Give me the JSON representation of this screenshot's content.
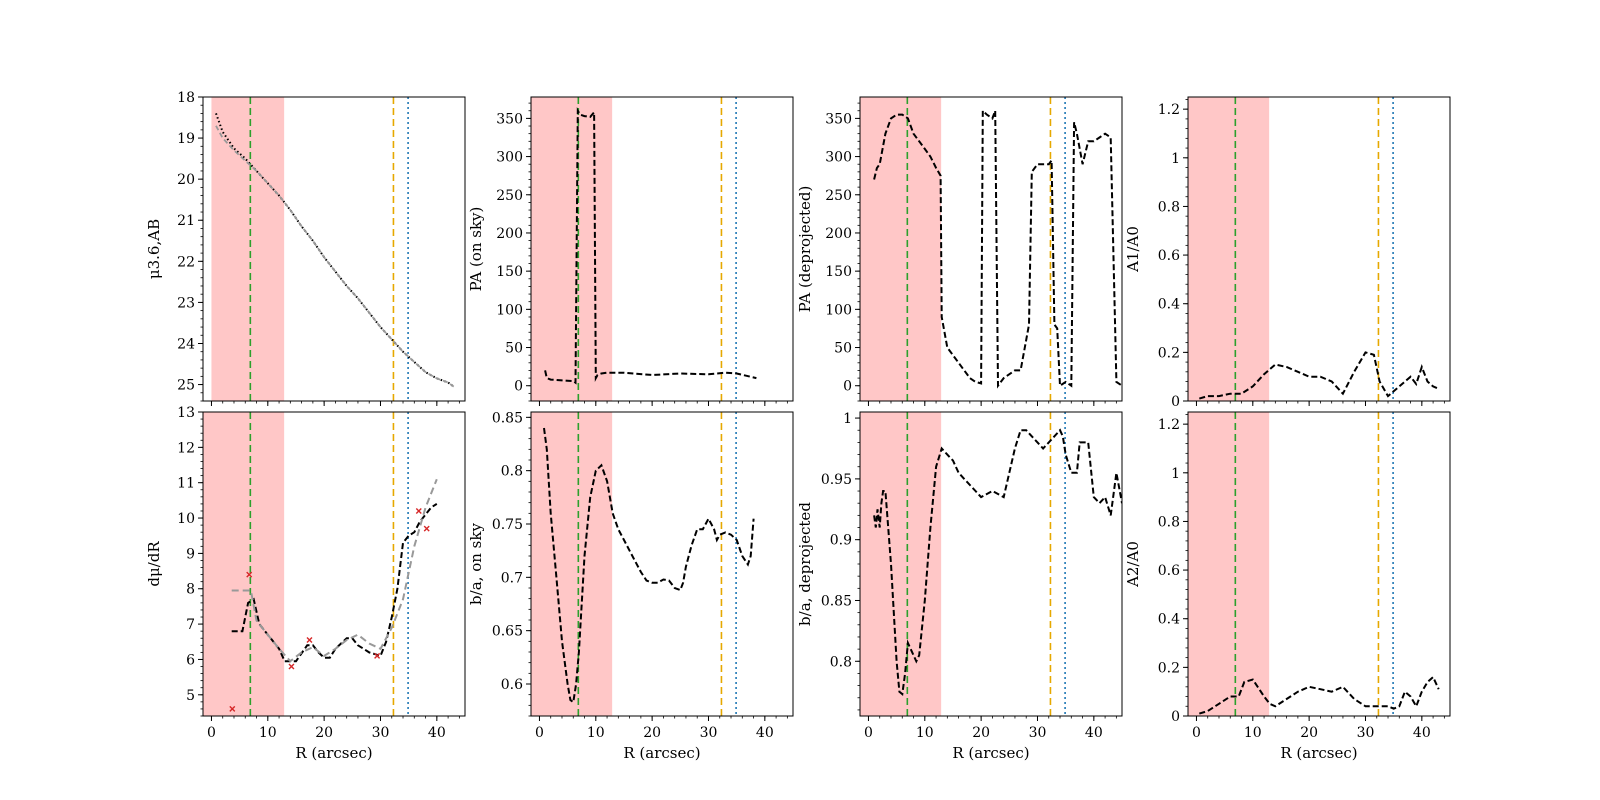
{
  "figure": {
    "title": ""
  },
  "colors": {
    "shade": "#ff9999",
    "green": "#2ca02c",
    "orange": "#e6a800",
    "blue": "#1f77b4",
    "profile": "#000000",
    "model": "#999999",
    "crosses": "#d62728"
  },
  "chart_data": [
    {
      "type": "line",
      "panel": "top-1",
      "xlabel": "",
      "ylabel": "μ3.6,AB",
      "xlim": [
        -1.5,
        45
      ],
      "ylim": [
        25.4,
        18
      ],
      "xticks": [],
      "yticks": [
        18,
        19,
        20,
        21,
        22,
        23,
        24,
        25
      ],
      "shade": [
        0,
        12.9
      ],
      "vlines": [
        6.9,
        32.3,
        34.9
      ],
      "series": [
        {
          "name": "profile",
          "style": "dotted-points",
          "x": [
            0.8,
            2,
            4,
            6,
            8,
            10,
            12,
            14,
            16,
            18,
            20,
            22,
            24,
            26,
            28,
            30,
            32,
            34,
            36,
            38,
            40,
            42,
            43
          ],
          "y": [
            18.4,
            18.85,
            19.25,
            19.5,
            19.8,
            20.1,
            20.4,
            20.75,
            21.15,
            21.5,
            21.9,
            22.25,
            22.6,
            22.9,
            23.25,
            23.6,
            23.9,
            24.2,
            24.45,
            24.7,
            24.85,
            24.95,
            25.05
          ]
        },
        {
          "name": "model",
          "style": "dashed",
          "x": [
            0.8,
            2,
            4,
            6,
            8,
            10,
            12,
            14,
            16,
            18,
            20,
            22,
            24,
            26,
            28,
            30,
            32,
            34,
            36,
            38,
            40,
            42,
            43
          ],
          "y": [
            18.7,
            19.0,
            19.3,
            19.55,
            19.8,
            20.1,
            20.4,
            20.75,
            21.15,
            21.5,
            21.9,
            22.25,
            22.6,
            22.9,
            23.25,
            23.6,
            23.9,
            24.2,
            24.45,
            24.7,
            24.85,
            24.95,
            25.05
          ]
        }
      ]
    },
    {
      "type": "line",
      "panel": "top-2",
      "xlabel": "",
      "ylabel": "PA (on sky)",
      "xlim": [
        -1.5,
        45
      ],
      "ylim": [
        -20,
        378
      ],
      "xticks": [],
      "yticks": [
        0,
        50,
        100,
        150,
        200,
        250,
        300,
        350
      ],
      "shade": [
        -1.5,
        12.9
      ],
      "vlines": [
        6.9,
        32.3,
        34.9
      ],
      "series": [
        {
          "name": "PA on sky",
          "style": "dashed",
          "x": [
            1,
            1.3,
            2,
            4,
            6,
            6.4,
            6.8,
            7.2,
            8,
            9,
            9.7,
            10,
            10.3,
            11,
            12,
            15,
            20,
            25,
            30,
            33,
            35,
            38.5
          ],
          "y": [
            20,
            10,
            8,
            7,
            6,
            4,
            360,
            355,
            353,
            352,
            358,
            10,
            14,
            16,
            17,
            17,
            14,
            16,
            15,
            17,
            16,
            10
          ]
        }
      ]
    },
    {
      "type": "line",
      "panel": "top-3",
      "xlabel": "",
      "ylabel": "PA (deprojected)",
      "xlim": [
        -1.5,
        45
      ],
      "ylim": [
        -20,
        378
      ],
      "xticks": [],
      "yticks": [
        0,
        50,
        100,
        150,
        200,
        250,
        300,
        350
      ],
      "shade": [
        -1.5,
        12.9
      ],
      "vlines": [
        6.9,
        32.3,
        34.9
      ],
      "series": [
        {
          "name": "PA deprojected",
          "style": "dashed",
          "x": [
            1,
            1.5,
            2,
            3,
            4,
            5,
            6,
            7,
            8,
            9,
            10,
            11,
            12,
            12.8,
            13,
            14,
            16,
            18,
            19,
            20,
            20.3,
            21,
            22,
            22.5,
            23,
            24,
            26,
            27,
            28,
            28.5,
            29,
            30,
            31,
            32,
            32.5,
            33,
            33.5,
            34,
            35,
            36,
            36.5,
            37,
            38,
            39,
            40,
            41,
            42,
            43,
            44,
            45
          ],
          "y": [
            270,
            285,
            290,
            330,
            350,
            355,
            355,
            350,
            330,
            320,
            310,
            300,
            285,
            275,
            90,
            50,
            30,
            10,
            5,
            3,
            360,
            355,
            350,
            360,
            0,
            10,
            20,
            20,
            60,
            80,
            280,
            290,
            290,
            290,
            295,
            80,
            75,
            0,
            5,
            0,
            345,
            330,
            290,
            320,
            320,
            325,
            330,
            325,
            5,
            0
          ]
        }
      ]
    },
    {
      "type": "line",
      "panel": "top-4",
      "xlabel": "",
      "ylabel": "A1/A0",
      "xlim": [
        -1.5,
        45
      ],
      "ylim": [
        0,
        1.25
      ],
      "xticks": [],
      "yticks": [
        0.0,
        0.2,
        0.4,
        0.6,
        0.8,
        1.0,
        1.2
      ],
      "shade": [
        -1.5,
        12.9
      ],
      "vlines": [
        6.9,
        32.3,
        34.9
      ],
      "series": [
        {
          "name": "A1/A0",
          "style": "dashed",
          "x": [
            0.5,
            2,
            4,
            6,
            8,
            10,
            12,
            14,
            16,
            18,
            20,
            22,
            24,
            26,
            28,
            30,
            31.5,
            32.5,
            34,
            36,
            38,
            39,
            40,
            41,
            42,
            43
          ],
          "y": [
            0.01,
            0.02,
            0.02,
            0.03,
            0.03,
            0.06,
            0.11,
            0.15,
            0.14,
            0.12,
            0.1,
            0.1,
            0.08,
            0.03,
            0.12,
            0.2,
            0.19,
            0.08,
            0.02,
            0.06,
            0.1,
            0.07,
            0.14,
            0.08,
            0.06,
            0.05
          ]
        }
      ]
    },
    {
      "type": "line",
      "panel": "bottom-1",
      "xlabel": "R (arcsec)",
      "ylabel": "dμ/dR",
      "xlim": [
        -1.5,
        45
      ],
      "ylim": [
        4.4,
        13
      ],
      "xticks": [
        0,
        10,
        20,
        30,
        40
      ],
      "yticks": [
        5,
        6,
        7,
        8,
        9,
        10,
        11,
        12,
        13
      ],
      "shade": [
        -1.5,
        12.9
      ],
      "vlines": [
        6.9,
        32.3,
        34.9
      ],
      "series": [
        {
          "name": "gradient",
          "style": "dashed",
          "x": [
            3.6,
            5.5,
            6.5,
            7.5,
            8.5,
            10,
            12,
            13,
            15,
            17,
            18,
            19,
            20,
            21,
            22,
            24,
            25,
            26,
            27,
            28,
            29,
            30,
            31,
            32,
            33,
            34,
            35,
            36,
            37,
            38,
            39,
            40
          ],
          "y": [
            6.8,
            6.8,
            7.6,
            7.7,
            7.0,
            6.7,
            6.3,
            5.95,
            5.95,
            6.4,
            6.4,
            6.2,
            6.05,
            6.05,
            6.3,
            6.6,
            6.6,
            6.4,
            6.3,
            6.2,
            6.15,
            6.1,
            6.5,
            7.2,
            8.0,
            9.3,
            9.5,
            9.6,
            9.9,
            10.1,
            10.3,
            10.4
          ]
        },
        {
          "name": "smoothed",
          "style": "dashed-gray",
          "x": [
            3.6,
            7,
            8,
            10,
            12,
            14,
            16,
            18,
            20,
            22,
            24,
            26,
            28,
            30,
            32,
            34,
            36,
            38,
            40
          ],
          "y": [
            7.95,
            7.95,
            7.1,
            6.7,
            6.3,
            5.95,
            6.2,
            6.35,
            6.1,
            6.3,
            6.55,
            6.7,
            6.45,
            6.3,
            6.9,
            7.7,
            9.2,
            10.3,
            11.1
          ]
        }
      ],
      "markers": {
        "name": "crosses",
        "x": [
          3.7,
          6.7,
          14.2,
          17.4,
          29.4,
          36.8,
          38.2
        ],
        "y": [
          4.6,
          8.4,
          5.8,
          6.55,
          6.1,
          10.2,
          9.7
        ]
      }
    },
    {
      "type": "line",
      "panel": "bottom-2",
      "xlabel": "R (arcsec)",
      "ylabel": "b/a, on sky",
      "xlim": [
        -1.5,
        45
      ],
      "ylim": [
        0.57,
        0.855
      ],
      "xticks": [
        0,
        10,
        20,
        30,
        40
      ],
      "yticks": [
        0.6,
        0.65,
        0.7,
        0.75,
        0.8,
        0.85
      ],
      "shade": [
        -1.5,
        12.9
      ],
      "vlines": [
        6.9,
        32.3,
        34.9
      ],
      "series": [
        {
          "name": "b/a on sky",
          "style": "dashed",
          "x": [
            0.8,
            1.3,
            2,
            3,
            4,
            5,
            5.5,
            6,
            6.5,
            7,
            8,
            9,
            10,
            11,
            12,
            13,
            14,
            15,
            16,
            17,
            18,
            19,
            20,
            21,
            22,
            23,
            24,
            25,
            25.5,
            26,
            27,
            28,
            29,
            30,
            31,
            31.5,
            32,
            33,
            34,
            35,
            36,
            37,
            37.5,
            38
          ],
          "y": [
            0.84,
            0.82,
            0.76,
            0.7,
            0.64,
            0.6,
            0.585,
            0.583,
            0.6,
            0.63,
            0.72,
            0.775,
            0.8,
            0.805,
            0.79,
            0.76,
            0.745,
            0.735,
            0.725,
            0.715,
            0.705,
            0.697,
            0.695,
            0.695,
            0.698,
            0.697,
            0.69,
            0.688,
            0.695,
            0.71,
            0.73,
            0.745,
            0.745,
            0.755,
            0.745,
            0.735,
            0.74,
            0.742,
            0.74,
            0.735,
            0.72,
            0.712,
            0.72,
            0.755
          ]
        }
      ]
    },
    {
      "type": "line",
      "panel": "bottom-3",
      "xlabel": "R (arcsec)",
      "ylabel": "b/a, deprojected",
      "xlim": [
        -1.5,
        45
      ],
      "ylim": [
        0.755,
        1.005
      ],
      "xticks": [
        0,
        10,
        20,
        30,
        40
      ],
      "yticks": [
        0.8,
        0.85,
        0.9,
        0.95,
        1.0
      ],
      "shade": [
        -1.5,
        12.9
      ],
      "vlines": [
        6.9,
        32.3,
        34.9
      ],
      "series": [
        {
          "name": "b/a deprojected",
          "style": "dashed",
          "x": [
            1,
            1.3,
            1.6,
            2,
            2.3,
            2.6,
            3,
            4,
            5,
            5.5,
            6,
            6.5,
            7,
            7.5,
            8,
            8.5,
            9,
            10,
            11,
            12,
            13,
            14,
            15,
            16,
            17,
            18,
            19,
            20,
            22,
            24,
            26,
            27,
            28,
            29,
            30,
            31,
            32,
            33,
            34,
            34.5,
            35,
            36,
            37,
            37.5,
            38,
            39,
            40,
            41,
            42,
            43,
            44,
            45
          ],
          "y": [
            0.92,
            0.91,
            0.925,
            0.91,
            0.93,
            0.94,
            0.94,
            0.88,
            0.8,
            0.775,
            0.773,
            0.79,
            0.815,
            0.81,
            0.805,
            0.8,
            0.805,
            0.85,
            0.91,
            0.96,
            0.975,
            0.97,
            0.965,
            0.955,
            0.95,
            0.945,
            0.94,
            0.935,
            0.94,
            0.935,
            0.975,
            0.99,
            0.99,
            0.985,
            0.98,
            0.975,
            0.98,
            0.985,
            0.99,
            0.985,
            0.97,
            0.955,
            0.955,
            0.98,
            0.98,
            0.98,
            0.935,
            0.93,
            0.935,
            0.92,
            0.955,
            0.93
          ]
        }
      ]
    },
    {
      "type": "line",
      "panel": "bottom-4",
      "xlabel": "R (arcsec)",
      "ylabel": "A2/A0",
      "xlim": [
        -1.5,
        45
      ],
      "ylim": [
        0,
        1.25
      ],
      "xticks": [
        0,
        10,
        20,
        30,
        40
      ],
      "yticks": [
        0.0,
        0.2,
        0.4,
        0.6,
        0.8,
        1.0,
        1.2
      ],
      "shade": [
        -1.5,
        12.9
      ],
      "vlines": [
        6.9,
        32.3,
        34.9
      ],
      "series": [
        {
          "name": "A2/A0",
          "style": "dashed",
          "x": [
            0.5,
            2,
            4,
            6,
            7.5,
            8.5,
            10,
            12,
            13,
            14,
            16,
            18,
            20,
            22,
            24,
            26,
            28,
            30,
            32,
            34,
            35,
            36,
            37,
            38,
            39,
            40,
            41,
            42,
            43
          ],
          "y": [
            0.01,
            0.02,
            0.05,
            0.08,
            0.08,
            0.14,
            0.15,
            0.08,
            0.05,
            0.04,
            0.07,
            0.1,
            0.12,
            0.11,
            0.1,
            0.12,
            0.07,
            0.04,
            0.04,
            0.04,
            0.03,
            0.04,
            0.1,
            0.08,
            0.04,
            0.1,
            0.14,
            0.16,
            0.11
          ]
        }
      ]
    }
  ]
}
